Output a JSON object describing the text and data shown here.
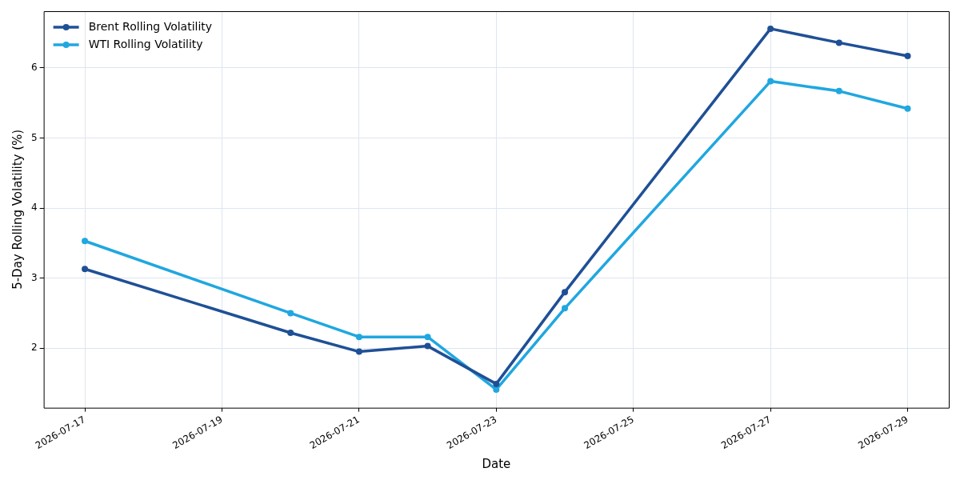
{
  "chart_data": {
    "type": "line",
    "xlabel": "Date",
    "ylabel": "5-Day Rolling Volatility (%)",
    "x": [
      "2026-07-17",
      "2026-07-20",
      "2026-07-21",
      "2026-07-22",
      "2026-07-23",
      "2026-07-24",
      "2026-07-27",
      "2026-07-28",
      "2026-07-29"
    ],
    "series": [
      {
        "name": "Brent Rolling Volatility",
        "color": "#1f5096",
        "values": [
          3.13,
          2.22,
          1.95,
          2.03,
          1.49,
          2.8,
          6.56,
          6.36,
          6.17
        ]
      },
      {
        "name": "WTI Rolling Volatility",
        "color": "#20a7e0",
        "values": [
          3.53,
          2.5,
          2.16,
          2.16,
          1.41,
          2.57,
          5.81,
          5.67,
          5.42
        ]
      }
    ],
    "xlim": [
      "2026-07-16T09:36",
      "2026-07-29T14:24"
    ],
    "xticks": [
      "2026-07-17",
      "2026-07-19",
      "2026-07-21",
      "2026-07-23",
      "2026-07-25",
      "2026-07-27",
      "2026-07-29"
    ],
    "ylim": [
      1.15,
      6.81
    ],
    "yticks": [
      2,
      3,
      4,
      5,
      6
    ],
    "grid": true,
    "legend": "top left",
    "marker": "circle",
    "line_style": "solid"
  }
}
